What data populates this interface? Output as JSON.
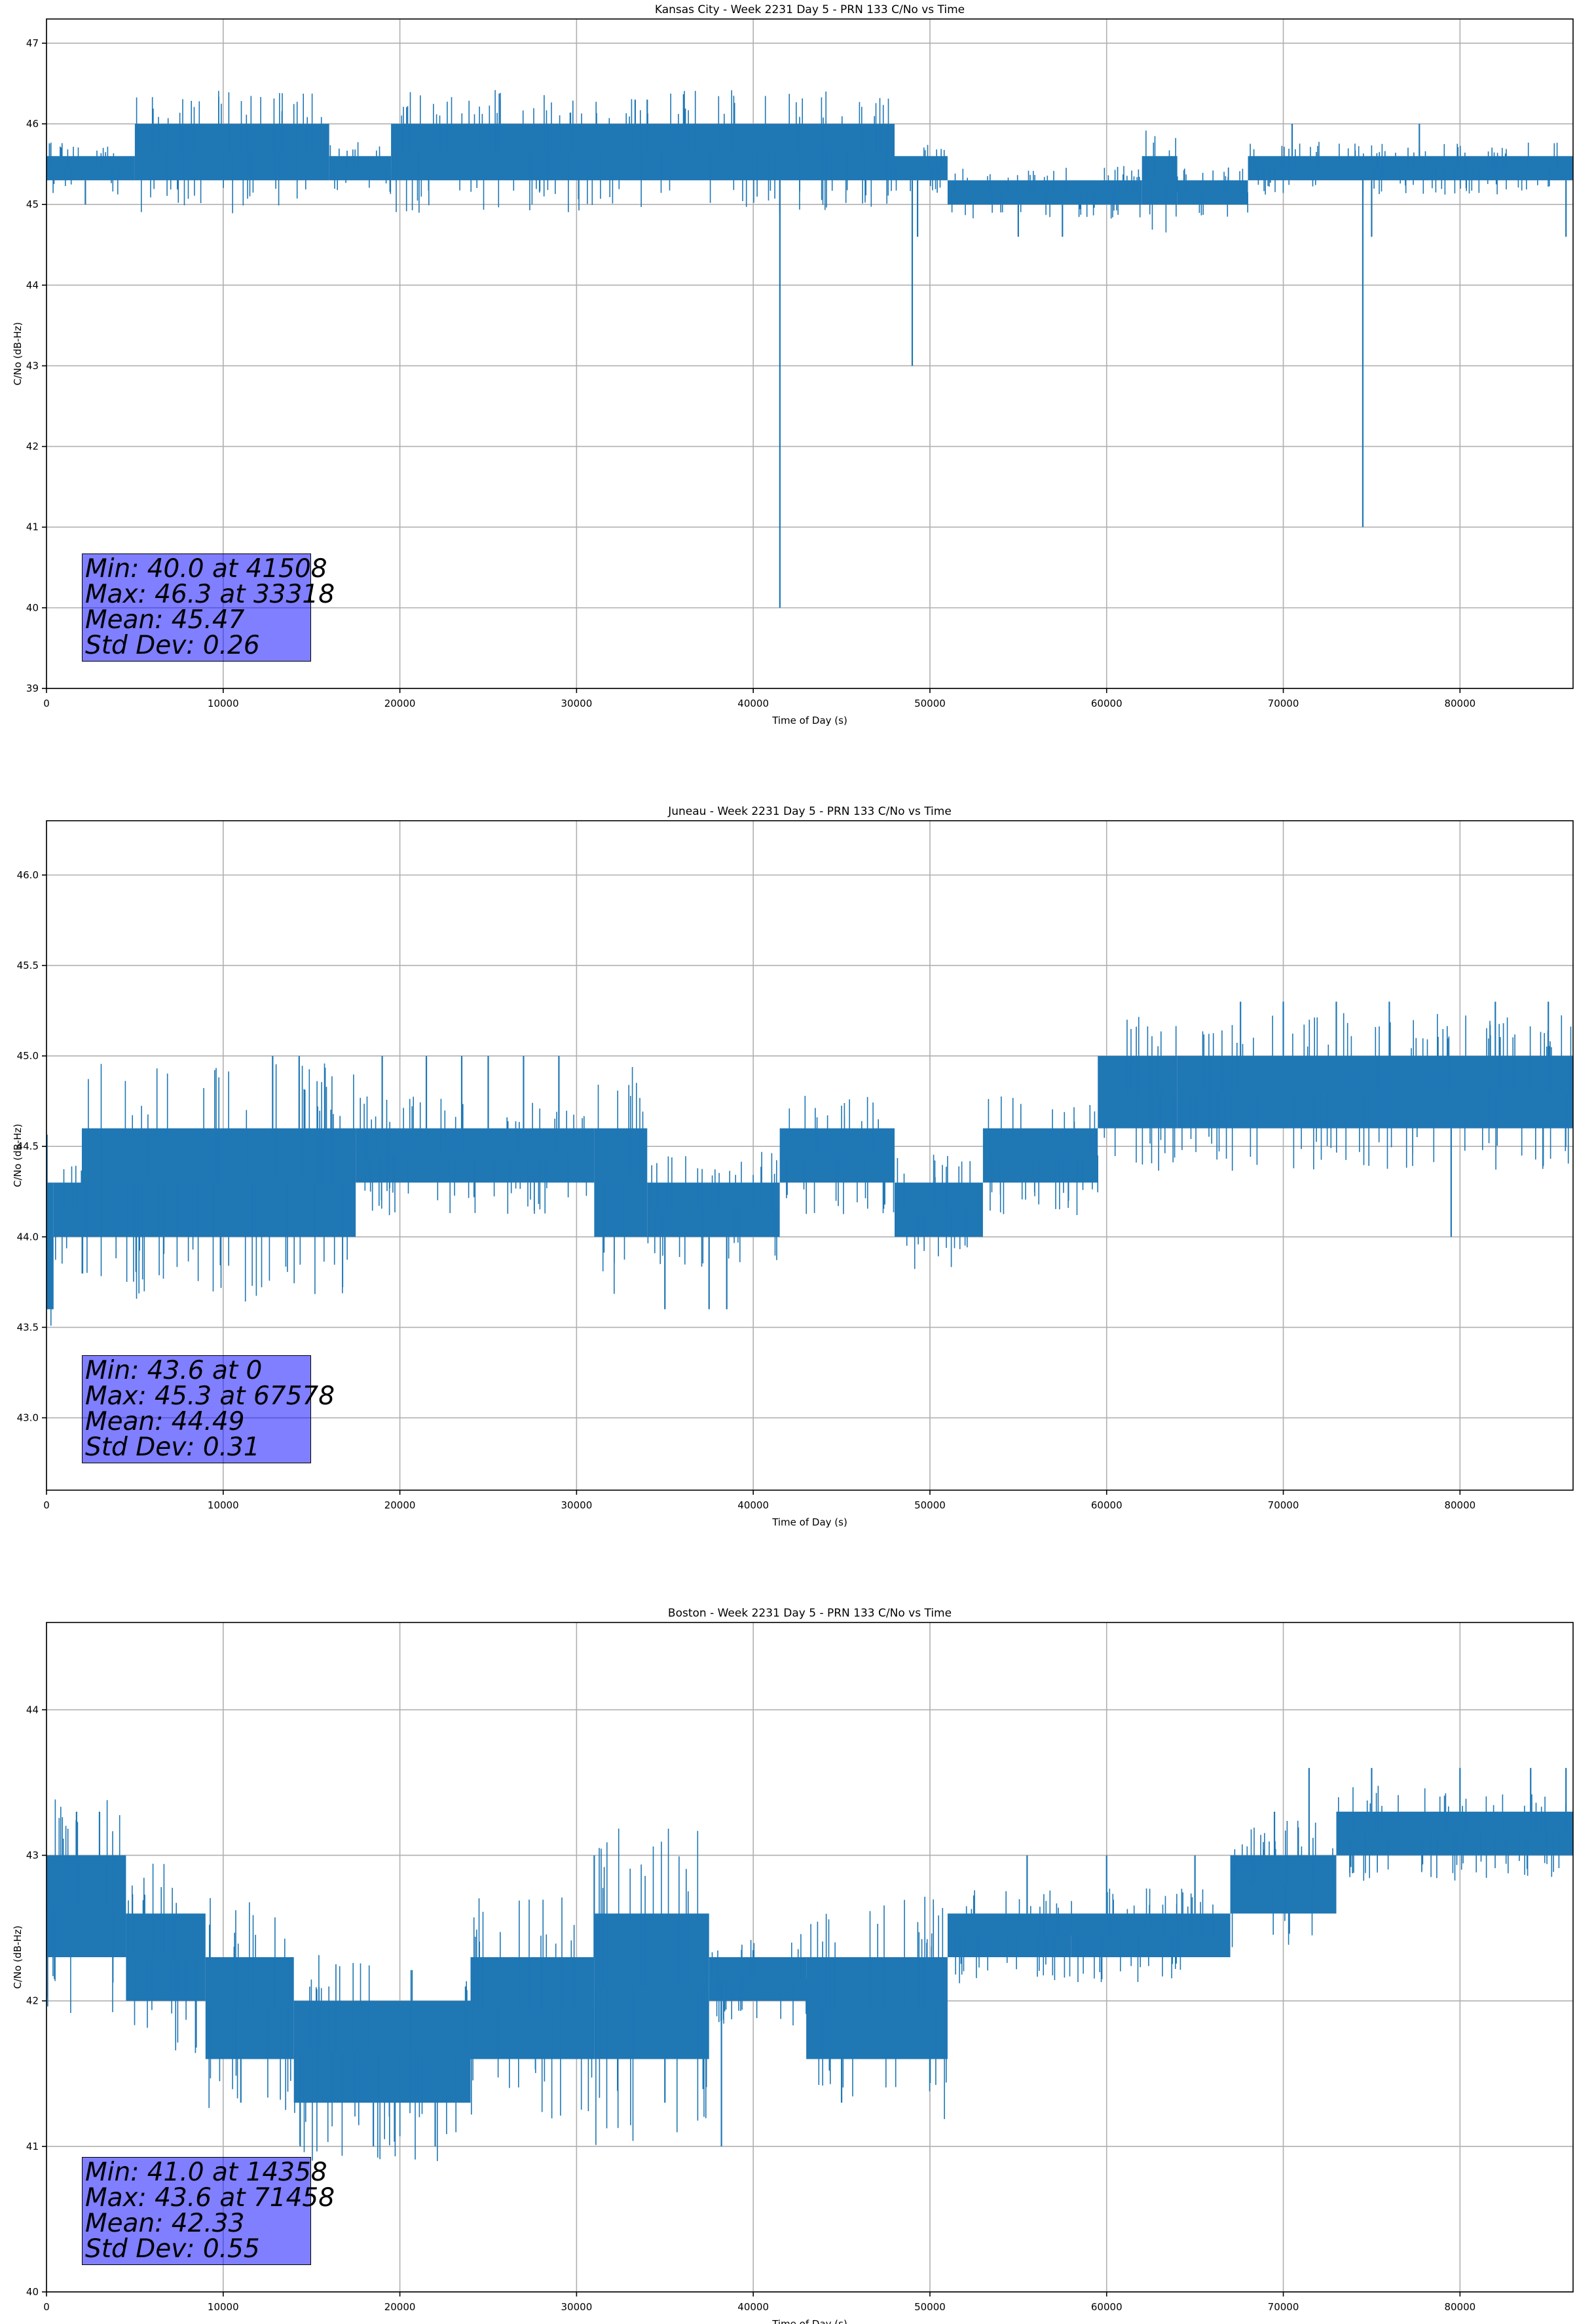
{
  "chart_data": [
    {
      "type": "line",
      "title": "Kansas City - Week 2231 Day 5 - PRN 133 C/No vs Time",
      "xlabel": "Time of Day (s)",
      "ylabel": "C/No (dB-Hz)",
      "xlim": [
        0,
        86400
      ],
      "ylim": [
        39,
        47.3
      ],
      "xticks": [
        0,
        10000,
        20000,
        30000,
        40000,
        50000,
        60000,
        70000,
        80000
      ],
      "yticks": [
        39,
        40,
        41,
        42,
        43,
        44,
        45,
        46,
        47
      ],
      "ytick_labels": [
        "39",
        "40",
        "41",
        "42",
        "43",
        "44",
        "45",
        "46",
        "47"
      ],
      "grid": true,
      "color": "#1f77b4",
      "bands": [
        {
          "x0": 0,
          "x1": 5000,
          "lo": 45.3,
          "hi": 45.6
        },
        {
          "x0": 5000,
          "x1": 16000,
          "lo": 45.3,
          "hi": 46.0
        },
        {
          "x0": 16000,
          "x1": 19500,
          "lo": 45.3,
          "hi": 45.6
        },
        {
          "x0": 19500,
          "x1": 48000,
          "lo": 45.3,
          "hi": 46.0
        },
        {
          "x0": 48000,
          "x1": 51000,
          "lo": 45.3,
          "hi": 45.6
        },
        {
          "x0": 51000,
          "x1": 62000,
          "lo": 45.0,
          "hi": 45.3
        },
        {
          "x0": 62000,
          "x1": 64000,
          "lo": 45.0,
          "hi": 45.6
        },
        {
          "x0": 64000,
          "x1": 68000,
          "lo": 45.0,
          "hi": 45.3
        },
        {
          "x0": 68000,
          "x1": 86400,
          "lo": 45.3,
          "hi": 45.6
        }
      ],
      "spikes": [
        [
          2200,
          45.0
        ],
        [
          33318,
          46.3
        ],
        [
          34000,
          46.3
        ],
        [
          41508,
          40.0
        ],
        [
          49000,
          43.0
        ],
        [
          49300,
          44.6
        ],
        [
          55000,
          44.6
        ],
        [
          57500,
          44.6
        ],
        [
          70500,
          46.0
        ],
        [
          74500,
          41.0
        ],
        [
          75000,
          44.6
        ],
        [
          77700,
          46.0
        ],
        [
          86000,
          44.6
        ]
      ],
      "stats": [
        "Min: 40.0 at 41508",
        "Max: 46.3 at 33318",
        "Mean: 45.47",
        "Std Dev: 0.26"
      ]
    },
    {
      "type": "line",
      "title": "Juneau - Week 2231 Day 5 - PRN 133 C/No vs Time",
      "xlabel": "Time of Day (s)",
      "ylabel": "C/No (dB-Hz)",
      "xlim": [
        0,
        86400
      ],
      "ylim": [
        42.6,
        46.3
      ],
      "xticks": [
        0,
        10000,
        20000,
        30000,
        40000,
        50000,
        60000,
        70000,
        80000
      ],
      "yticks": [
        43.0,
        43.5,
        44.0,
        44.5,
        45.0,
        45.5,
        46.0
      ],
      "ytick_labels": [
        "43.0",
        "43.5",
        "44.0",
        "44.5",
        "45.0",
        "45.5",
        "46.0"
      ],
      "grid": true,
      "color": "#1f77b4",
      "bands": [
        {
          "x0": 0,
          "x1": 400,
          "lo": 43.6,
          "hi": 44.3
        },
        {
          "x0": 400,
          "x1": 2000,
          "lo": 44.0,
          "hi": 44.3
        },
        {
          "x0": 2000,
          "x1": 17500,
          "lo": 44.0,
          "hi": 44.6
        },
        {
          "x0": 17500,
          "x1": 31000,
          "lo": 44.3,
          "hi": 44.6
        },
        {
          "x0": 31000,
          "x1": 34000,
          "lo": 44.0,
          "hi": 44.6
        },
        {
          "x0": 34000,
          "x1": 41500,
          "lo": 44.0,
          "hi": 44.3
        },
        {
          "x0": 41500,
          "x1": 48000,
          "lo": 44.3,
          "hi": 44.6
        },
        {
          "x0": 48000,
          "x1": 53000,
          "lo": 44.0,
          "hi": 44.3
        },
        {
          "x0": 53000,
          "x1": 59500,
          "lo": 44.3,
          "hi": 44.6
        },
        {
          "x0": 59500,
          "x1": 64000,
          "lo": 44.6,
          "hi": 45.0
        },
        {
          "x0": 64000,
          "x1": 86400,
          "lo": 44.6,
          "hi": 45.0
        }
      ],
      "spikes": [
        [
          12800,
          45.0
        ],
        [
          14300,
          45.0
        ],
        [
          19000,
          45.0
        ],
        [
          21500,
          45.0
        ],
        [
          23500,
          45.0
        ],
        [
          25000,
          45.0
        ],
        [
          27000,
          45.0
        ],
        [
          29000,
          45.0
        ],
        [
          35000,
          43.6
        ],
        [
          37500,
          43.6
        ],
        [
          38500,
          43.6
        ],
        [
          67578,
          45.3
        ],
        [
          70000,
          45.3
        ],
        [
          73000,
          45.3
        ],
        [
          76000,
          45.3
        ],
        [
          79500,
          44.0
        ],
        [
          82000,
          45.3
        ],
        [
          85000,
          45.3
        ]
      ],
      "stats": [
        "Min: 43.6 at 0",
        "Max: 45.3 at 67578",
        "Mean: 44.49",
        "Std Dev: 0.31"
      ]
    },
    {
      "type": "line",
      "title": "Boston - Week 2231 Day 5 - PRN 133 C/No vs Time",
      "xlabel": "Time of Day (s)",
      "ylabel": "C/No (dB-Hz)",
      "xlim": [
        0,
        86400
      ],
      "ylim": [
        40,
        44.6
      ],
      "xticks": [
        0,
        10000,
        20000,
        30000,
        40000,
        50000,
        60000,
        70000,
        80000
      ],
      "yticks": [
        40,
        41,
        42,
        43,
        44
      ],
      "ytick_labels": [
        "40",
        "41",
        "42",
        "43",
        "44"
      ],
      "grid": true,
      "color": "#1f77b4",
      "bands": [
        {
          "x0": 0,
          "x1": 4500,
          "lo": 42.3,
          "hi": 43.0
        },
        {
          "x0": 4500,
          "x1": 9000,
          "lo": 42.0,
          "hi": 42.6
        },
        {
          "x0": 9000,
          "x1": 14000,
          "lo": 41.6,
          "hi": 42.3
        },
        {
          "x0": 14000,
          "x1": 24000,
          "lo": 41.3,
          "hi": 42.0
        },
        {
          "x0": 24000,
          "x1": 31000,
          "lo": 41.6,
          "hi": 42.3
        },
        {
          "x0": 31000,
          "x1": 37500,
          "lo": 41.6,
          "hi": 42.6
        },
        {
          "x0": 37500,
          "x1": 43000,
          "lo": 42.0,
          "hi": 42.3
        },
        {
          "x0": 43000,
          "x1": 51000,
          "lo": 41.6,
          "hi": 42.3
        },
        {
          "x0": 51000,
          "x1": 58000,
          "lo": 42.3,
          "hi": 42.6
        },
        {
          "x0": 58000,
          "x1": 67000,
          "lo": 42.3,
          "hi": 42.6
        },
        {
          "x0": 67000,
          "x1": 73000,
          "lo": 42.6,
          "hi": 43.0
        },
        {
          "x0": 73000,
          "x1": 86400,
          "lo": 43.0,
          "hi": 43.3
        }
      ],
      "spikes": [
        [
          1700,
          43.3
        ],
        [
          3000,
          43.3
        ],
        [
          11000,
          41.3
        ],
        [
          14358,
          41.0
        ],
        [
          18500,
          41.0
        ],
        [
          22000,
          41.0
        ],
        [
          31000,
          43.0
        ],
        [
          35000,
          41.3
        ],
        [
          38200,
          41.0
        ],
        [
          45000,
          41.3
        ],
        [
          55500,
          43.0
        ],
        [
          60000,
          43.0
        ],
        [
          65000,
          43.0
        ],
        [
          69500,
          43.3
        ],
        [
          71458,
          43.6
        ],
        [
          75000,
          43.6
        ],
        [
          80000,
          43.6
        ],
        [
          84000,
          43.6
        ],
        [
          86000,
          43.6
        ]
      ],
      "stats": [
        "Min: 41.0 at 14358",
        "Max: 43.6 at 71458",
        "Mean: 42.33",
        "Std Dev: 0.55"
      ]
    }
  ]
}
